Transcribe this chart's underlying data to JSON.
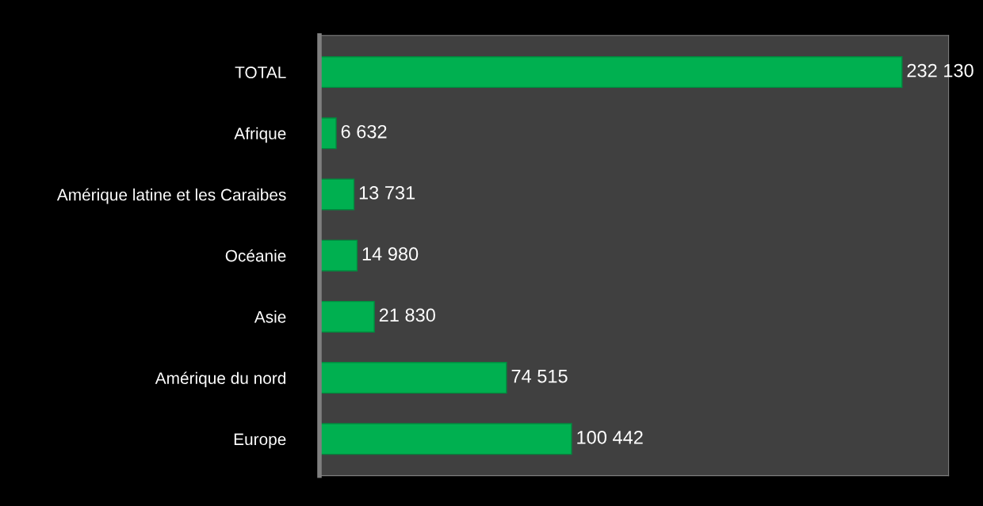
{
  "chart_data": {
    "type": "bar",
    "orientation": "horizontal",
    "categories": [
      "TOTAL",
      "Afrique",
      "Amérique latine et les Caraibes",
      "Océanie",
      "Asie",
      "Amérique du nord",
      "Europe"
    ],
    "values": [
      232130,
      6632,
      13731,
      14980,
      21830,
      74515,
      100442
    ],
    "value_labels": [
      "232 130",
      "6 632",
      "13 731",
      "14 980",
      "21 830",
      "74 515",
      "100 442"
    ],
    "color": "#00b050",
    "grid": false,
    "legend": false,
    "tick_labels": "y"
  }
}
